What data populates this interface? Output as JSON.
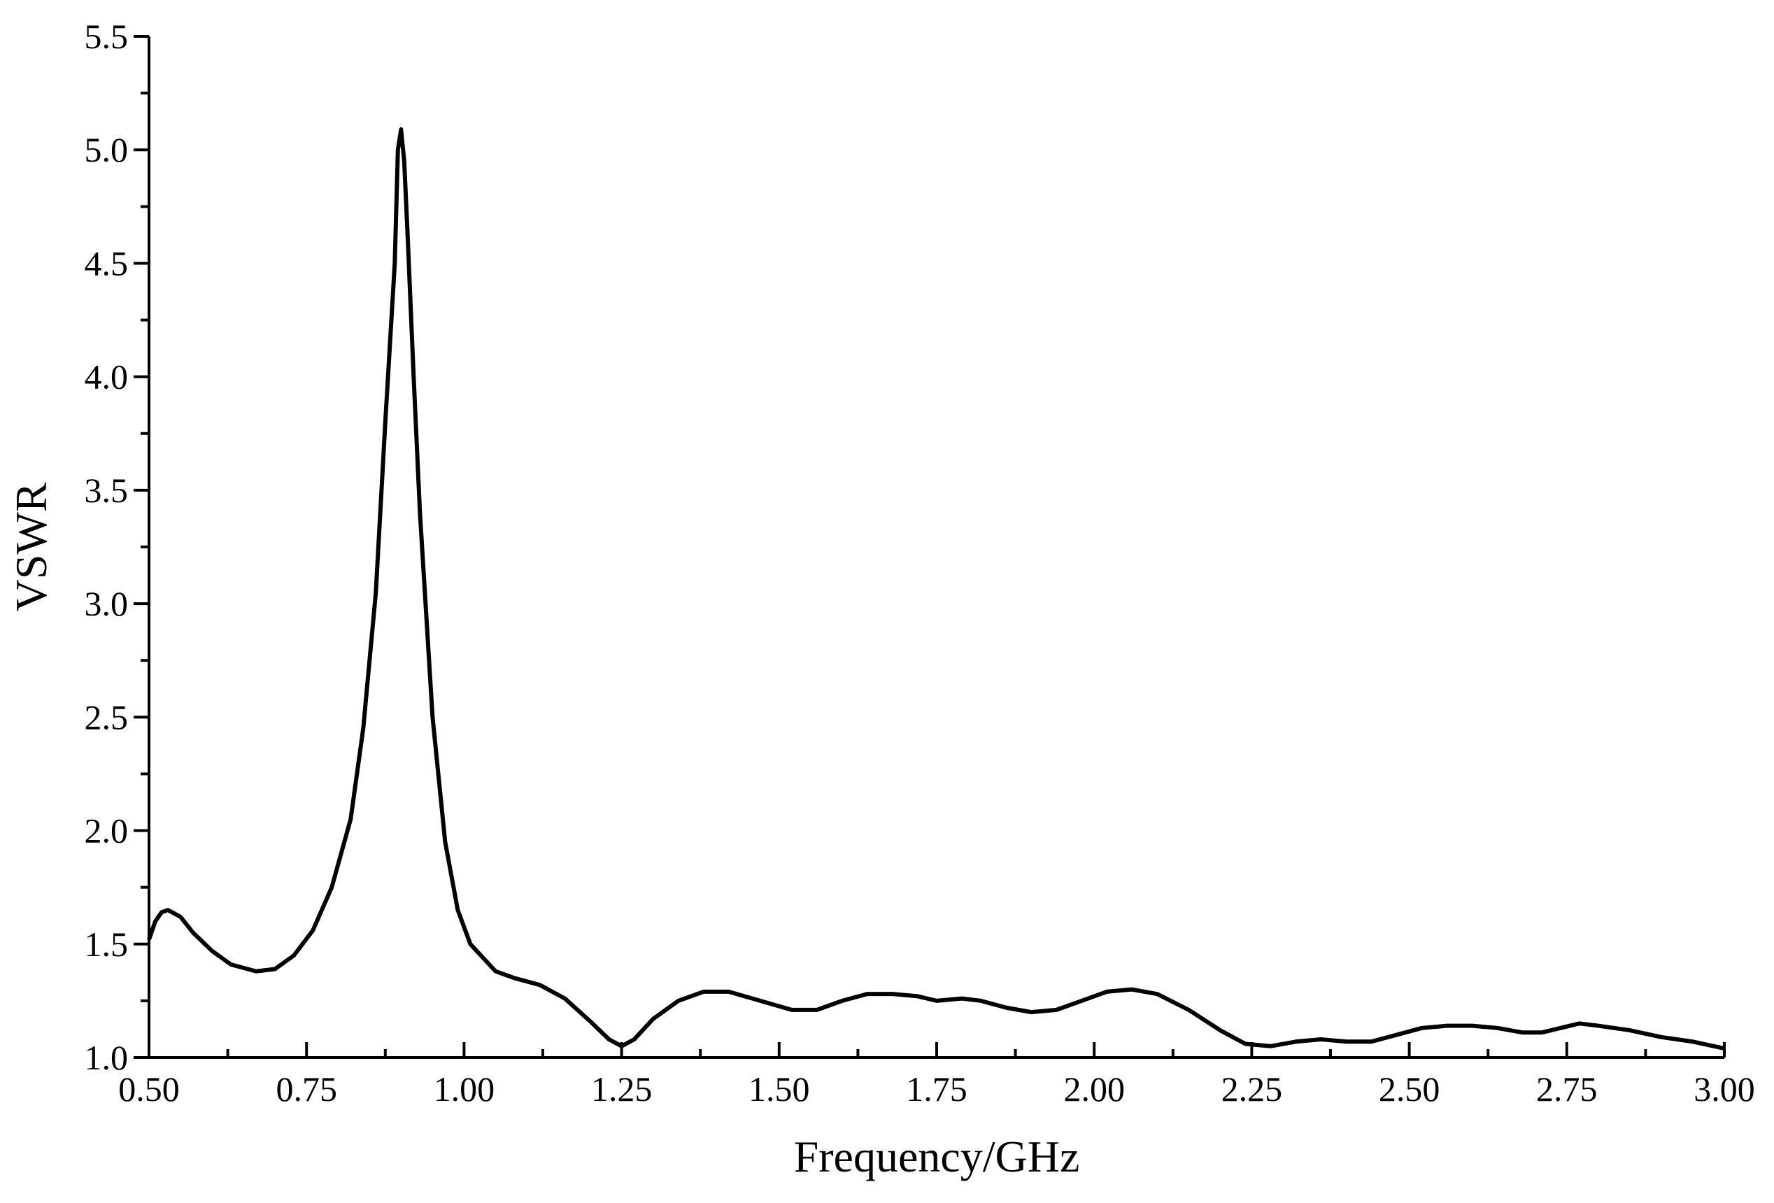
{
  "chart_data": {
    "type": "line",
    "x_label": "Frequency/GHz",
    "y_label": "VSWR",
    "x": [
      0.5,
      0.51,
      0.52,
      0.53,
      0.55,
      0.57,
      0.6,
      0.63,
      0.67,
      0.7,
      0.73,
      0.76,
      0.79,
      0.82,
      0.84,
      0.86,
      0.875,
      0.89,
      0.895,
      0.9,
      0.905,
      0.91,
      0.92,
      0.93,
      0.95,
      0.97,
      0.99,
      1.01,
      1.03,
      1.05,
      1.08,
      1.12,
      1.16,
      1.2,
      1.23,
      1.25,
      1.27,
      1.3,
      1.34,
      1.38,
      1.42,
      1.47,
      1.52,
      1.56,
      1.6,
      1.64,
      1.68,
      1.72,
      1.75,
      1.79,
      1.82,
      1.86,
      1.9,
      1.94,
      1.98,
      2.02,
      2.06,
      2.1,
      2.15,
      2.2,
      2.24,
      2.28,
      2.32,
      2.36,
      2.4,
      2.44,
      2.48,
      2.52,
      2.56,
      2.6,
      2.64,
      2.68,
      2.71,
      2.74,
      2.77,
      2.8,
      2.85,
      2.9,
      2.95,
      3.0
    ],
    "series": [
      {
        "color": "#000000",
        "values": [
          1.52,
          1.6,
          1.64,
          1.65,
          1.62,
          1.55,
          1.47,
          1.41,
          1.38,
          1.39,
          1.45,
          1.56,
          1.75,
          2.05,
          2.45,
          3.05,
          3.8,
          4.5,
          5.0,
          5.09,
          4.95,
          4.65,
          4.0,
          3.4,
          2.5,
          1.95,
          1.65,
          1.5,
          1.44,
          1.38,
          1.35,
          1.32,
          1.26,
          1.16,
          1.08,
          1.05,
          1.08,
          1.17,
          1.25,
          1.29,
          1.29,
          1.25,
          1.21,
          1.21,
          1.25,
          1.28,
          1.28,
          1.27,
          1.25,
          1.26,
          1.25,
          1.22,
          1.2,
          1.21,
          1.25,
          1.29,
          1.3,
          1.28,
          1.21,
          1.12,
          1.06,
          1.05,
          1.07,
          1.08,
          1.07,
          1.07,
          1.1,
          1.13,
          1.14,
          1.14,
          1.13,
          1.11,
          1.11,
          1.13,
          1.15,
          1.14,
          1.12,
          1.09,
          1.07,
          1.04
        ]
      }
    ],
    "xlim": [
      0.5,
      3.0
    ],
    "xticks": [
      {
        "value": 0.5,
        "label": "0.50"
      },
      {
        "value": 0.75,
        "label": "0.75"
      },
      {
        "value": 1,
        "label": "1.00"
      },
      {
        "value": 1.25,
        "label": "1.25"
      },
      {
        "value": 1.5,
        "label": "1.50"
      },
      {
        "value": 1.75,
        "label": "1.75"
      },
      {
        "value": 2,
        "label": "2.00"
      },
      {
        "value": 2.25,
        "label": "2.25"
      },
      {
        "value": 2.5,
        "label": "2.50"
      },
      {
        "value": 2.75,
        "label": "2.75"
      },
      {
        "value": 3,
        "label": "3.00"
      }
    ],
    "ylim": [
      1.0,
      5.5
    ],
    "yticks": [
      {
        "value": 1,
        "label": "1.0"
      },
      1.5,
      {
        "value": 2,
        "label": "2.0"
      },
      2.5,
      {
        "value": 3,
        "label": "3.0"
      },
      3.5,
      {
        "value": 4,
        "label": "4.0"
      },
      4.5,
      {
        "value": 5,
        "label": "5.0"
      },
      5.5
    ],
    "grid": false
  }
}
